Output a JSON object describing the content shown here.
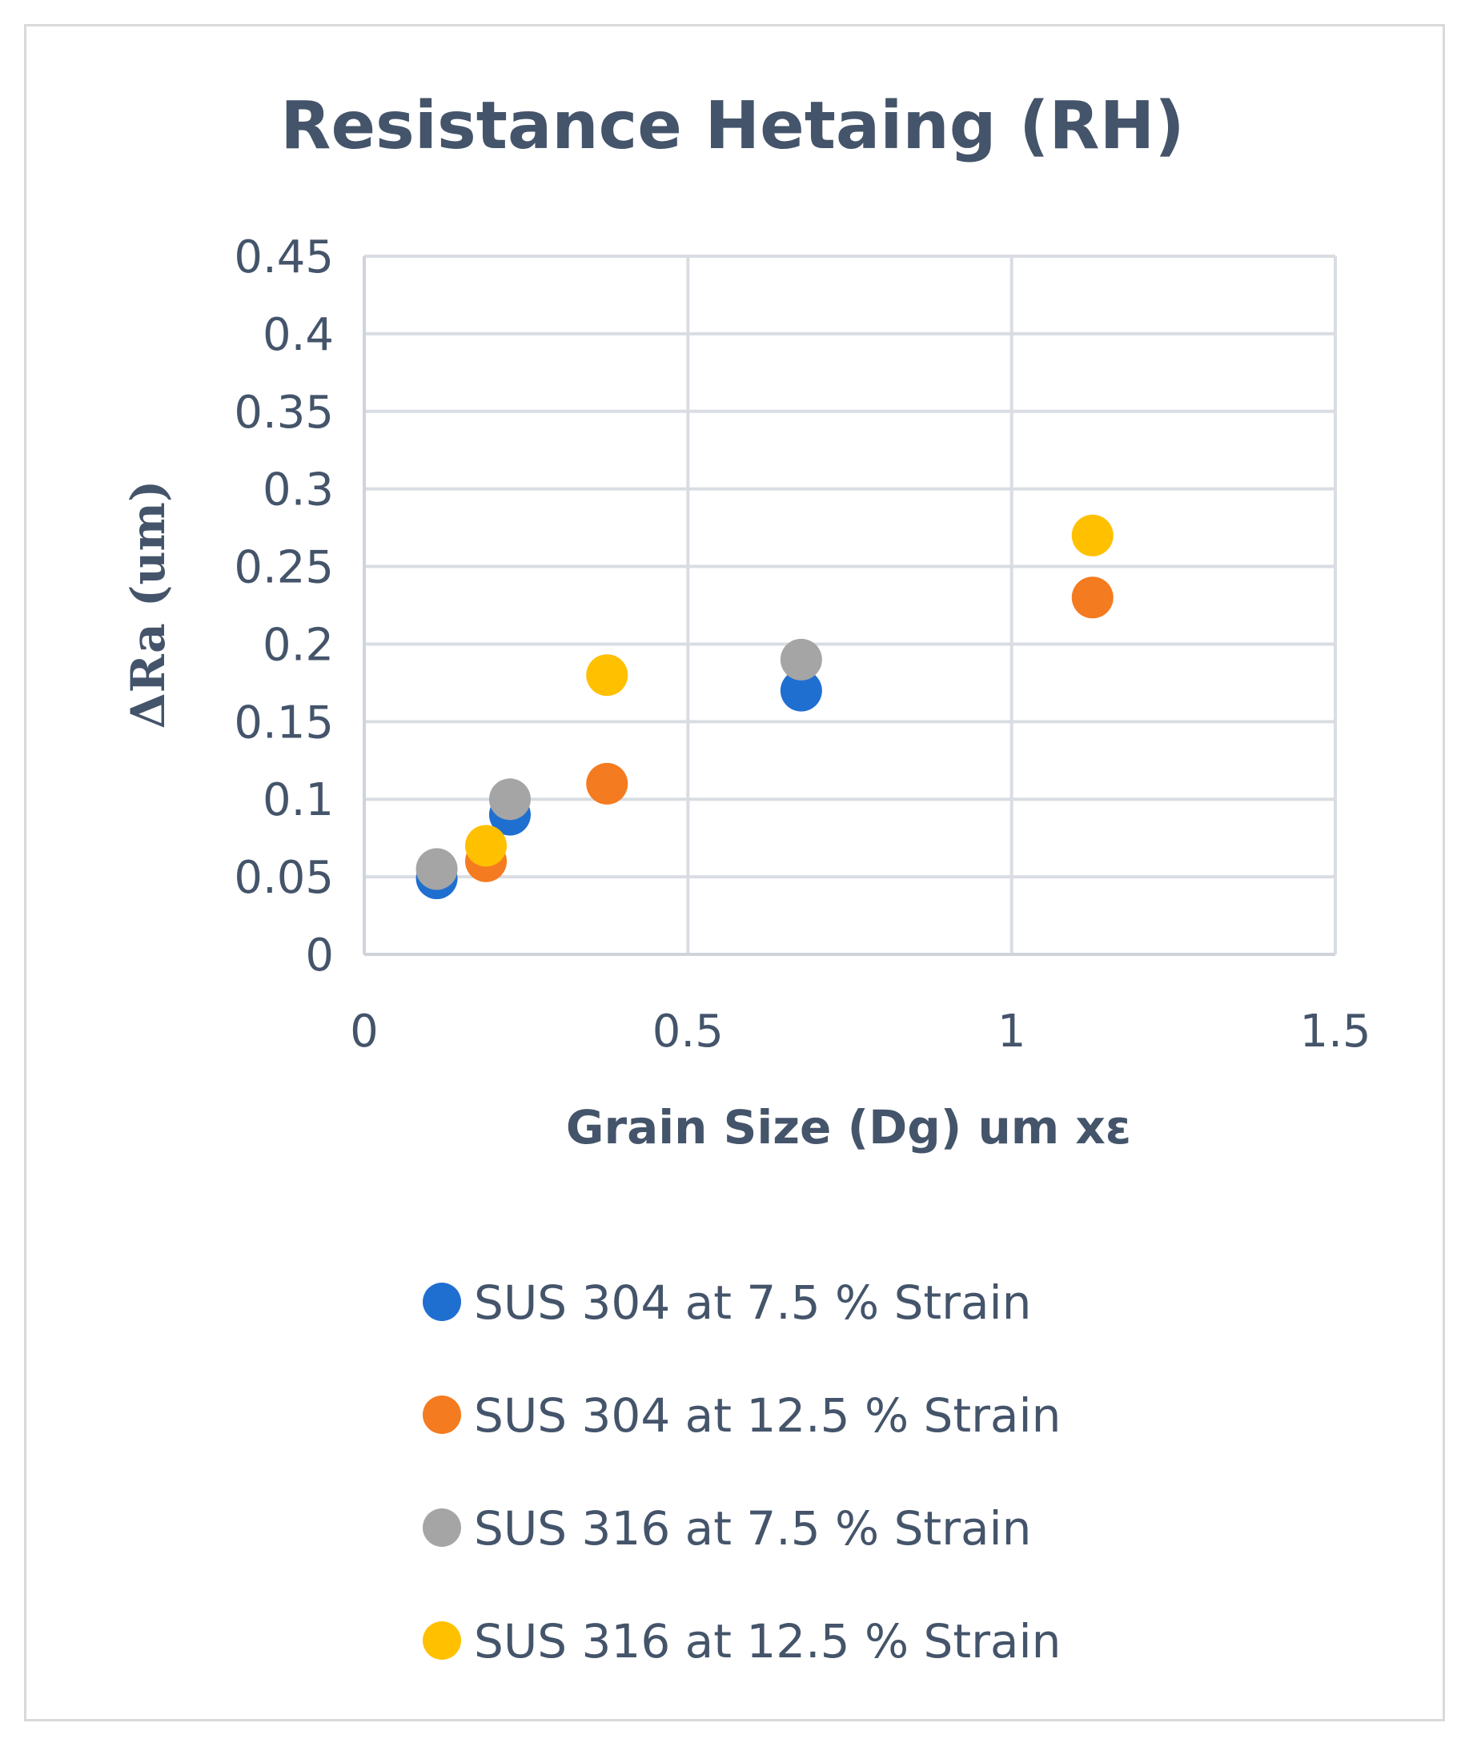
{
  "chart_data": {
    "type": "scatter",
    "title": "Resistance Hetaing (RH)",
    "xlabel": "Grain Size (Dg) um xε",
    "ylabel": "ΔRa (um)",
    "xlim": [
      0,
      1.5
    ],
    "ylim": [
      0,
      0.45
    ],
    "xticks": [
      0,
      0.5,
      1,
      1.5
    ],
    "xtick_labels": [
      "0",
      "0.5",
      "1",
      "1.5"
    ],
    "yticks": [
      0,
      0.05,
      0.1,
      0.15,
      0.2,
      0.25,
      0.3,
      0.35,
      0.4,
      0.45
    ],
    "ytick_labels": [
      "0",
      "0.05",
      "0.1",
      "0.15",
      "0.2",
      "0.25",
      "0.3",
      "0.35",
      "0.4",
      "0.45"
    ],
    "grid": true,
    "legend_position": "bottom",
    "series": [
      {
        "name": "SUS 304 at 7.5 % Strain",
        "color": "#1f6fd1",
        "points": [
          [
            0.112,
            0.049
          ],
          [
            0.225,
            0.09
          ],
          [
            0.675,
            0.17
          ]
        ]
      },
      {
        "name": "SUS 304 at 12.5 % Strain",
        "color": "#f47b20",
        "points": [
          [
            0.188,
            0.06
          ],
          [
            0.375,
            0.11
          ],
          [
            1.125,
            0.23
          ]
        ]
      },
      {
        "name": "SUS 316 at 7.5 % Strain",
        "color": "#a5a5a5",
        "points": [
          [
            0.112,
            0.055
          ],
          [
            0.225,
            0.1
          ],
          [
            0.675,
            0.19
          ]
        ]
      },
      {
        "name": "SUS 316 at 12.5 % Strain",
        "color": "#ffc000",
        "points": [
          [
            0.188,
            0.07
          ],
          [
            0.375,
            0.18
          ],
          [
            1.125,
            0.27
          ]
        ]
      }
    ]
  }
}
